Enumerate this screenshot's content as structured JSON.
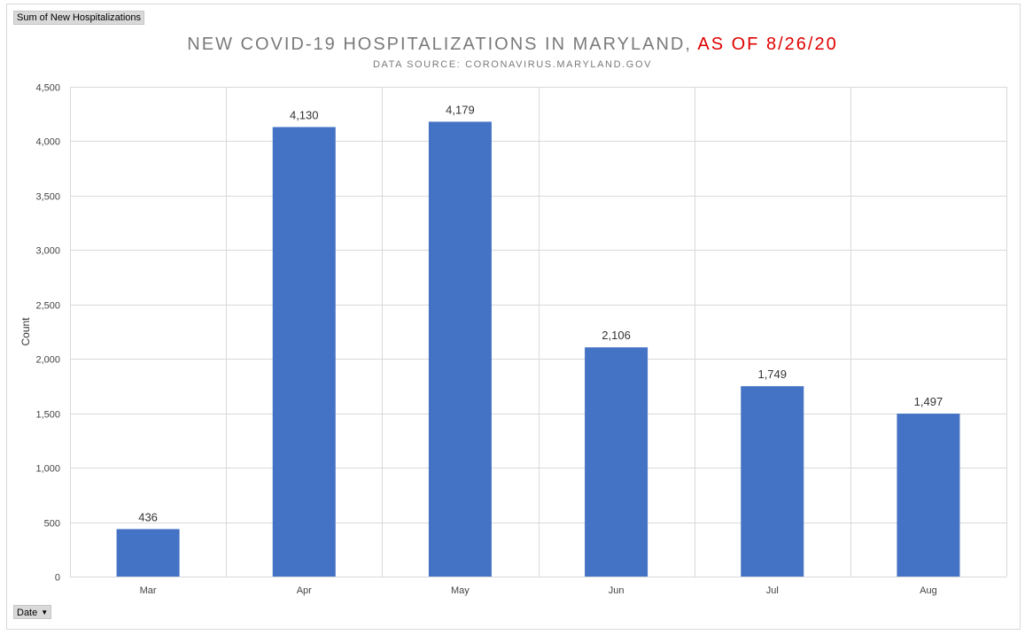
{
  "pivot": {
    "value_field": "Sum of New Hospitalizations",
    "axis_field": "Date",
    "axis_field_icon": "dropdown-arrow-icon"
  },
  "chart_data": {
    "type": "bar",
    "title": "NEW COVID-19 HOSPITALIZATIONS IN MARYLAND,",
    "title_highlight": "AS OF 8/26/20",
    "subtitle": "DATA SOURCE: CORONAVIRUS.MARYLAND.GOV",
    "xlabel": "",
    "ylabel": "Count",
    "categories": [
      "Mar",
      "Apr",
      "May",
      "Jun",
      "Jul",
      "Aug"
    ],
    "values": [
      436,
      4130,
      4179,
      2106,
      1749,
      1497
    ],
    "data_labels": [
      "436",
      "4,130",
      "4,179",
      "2,106",
      "1,749",
      "1,497"
    ],
    "y_ticks": [
      0,
      500,
      1000,
      1500,
      2000,
      2500,
      3000,
      3500,
      4000,
      4500
    ],
    "y_tick_labels": [
      "0",
      "500",
      "1,000",
      "1,500",
      "2,000",
      "2,500",
      "3,000",
      "3,500",
      "4,000",
      "4,500"
    ],
    "ylim": [
      0,
      4500
    ],
    "grid": true,
    "legend": "none",
    "colors": {
      "bar": "#4472c4",
      "grid": "#d9d9d9",
      "title": "#7a7a7a",
      "title_highlight": "#e00000"
    }
  }
}
